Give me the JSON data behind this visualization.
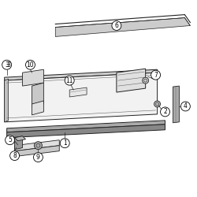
{
  "bg_color": "#ffffff",
  "line_color": "#666666",
  "dark_color": "#222222",
  "mid_color": "#999999",
  "light_color": "#dddddd",
  "fig_width": 2.5,
  "fig_height": 2.5,
  "dpi": 100
}
